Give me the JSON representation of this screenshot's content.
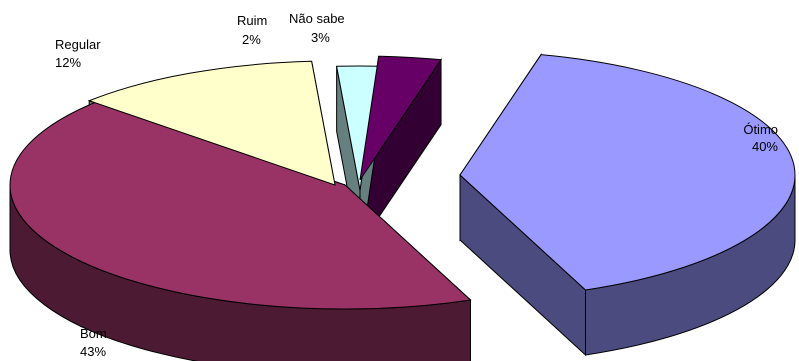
{
  "chart_data": {
    "type": "pie",
    "style": "3d-exploded",
    "title": "",
    "legend": "none",
    "slices": [
      {
        "name": "Ótimo",
        "value": 40,
        "label": "40%",
        "top_color": "#9999FF",
        "side_color": "#4B4B80"
      },
      {
        "name": "Bom",
        "value": 43,
        "label": "43%",
        "top_color": "#993366",
        "side_color": "#4C1A33"
      },
      {
        "name": "Regular",
        "value": 12,
        "label": "12%",
        "top_color": "#FFFFCC",
        "side_color": "#808066"
      },
      {
        "name": "Ruim",
        "value": 2,
        "label": "2%",
        "top_color": "#CCFFFF",
        "side_color": "#668080"
      },
      {
        "name": "Não sabe",
        "value": 3,
        "label": "3%",
        "top_color": "#660066",
        "side_color": "#330033"
      }
    ]
  }
}
